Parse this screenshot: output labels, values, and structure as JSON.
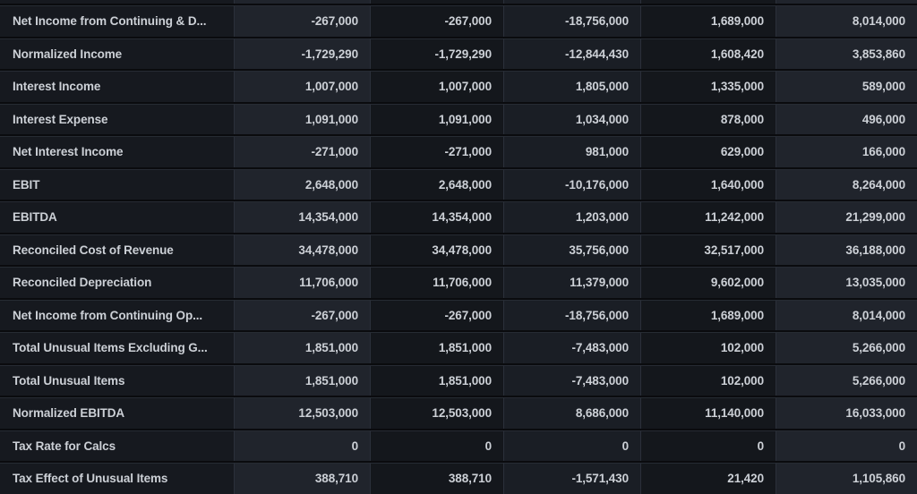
{
  "theme": {
    "page_bg": "#0a0b0e",
    "row_gap_color": "#0a0b0e",
    "top_border_color": "#262b33",
    "column_separator_color": "#2b303a",
    "text_color": "#ccd0d6",
    "column_backgrounds": [
      "#16191f",
      "#20242c",
      "#14171c",
      "#1a1e25",
      "#14171c",
      "#20242c"
    ]
  },
  "table": {
    "rows": [
      {
        "label": "Net Income from Continuing & D...",
        "values": [
          "-267,000",
          "-267,000",
          "-18,756,000",
          "1,689,000",
          "8,014,000"
        ]
      },
      {
        "label": "Normalized Income",
        "values": [
          "-1,729,290",
          "-1,729,290",
          "-12,844,430",
          "1,608,420",
          "3,853,860"
        ]
      },
      {
        "label": "Interest Income",
        "values": [
          "1,007,000",
          "1,007,000",
          "1,805,000",
          "1,335,000",
          "589,000"
        ]
      },
      {
        "label": "Interest Expense",
        "values": [
          "1,091,000",
          "1,091,000",
          "1,034,000",
          "878,000",
          "496,000"
        ]
      },
      {
        "label": "Net Interest Income",
        "values": [
          "-271,000",
          "-271,000",
          "981,000",
          "629,000",
          "166,000"
        ]
      },
      {
        "label": "EBIT",
        "values": [
          "2,648,000",
          "2,648,000",
          "-10,176,000",
          "1,640,000",
          "8,264,000"
        ]
      },
      {
        "label": "EBITDA",
        "values": [
          "14,354,000",
          "14,354,000",
          "1,203,000",
          "11,242,000",
          "21,299,000"
        ]
      },
      {
        "label": "Reconciled Cost of Revenue",
        "values": [
          "34,478,000",
          "34,478,000",
          "35,756,000",
          "32,517,000",
          "36,188,000"
        ]
      },
      {
        "label": "Reconciled Depreciation",
        "values": [
          "11,706,000",
          "11,706,000",
          "11,379,000",
          "9,602,000",
          "13,035,000"
        ]
      },
      {
        "label": "Net Income from Continuing Op...",
        "values": [
          "-267,000",
          "-267,000",
          "-18,756,000",
          "1,689,000",
          "8,014,000"
        ]
      },
      {
        "label": "Total Unusual Items Excluding G...",
        "values": [
          "1,851,000",
          "1,851,000",
          "-7,483,000",
          "102,000",
          "5,266,000"
        ]
      },
      {
        "label": "Total Unusual Items",
        "values": [
          "1,851,000",
          "1,851,000",
          "-7,483,000",
          "102,000",
          "5,266,000"
        ]
      },
      {
        "label": "Normalized EBITDA",
        "values": [
          "12,503,000",
          "12,503,000",
          "8,686,000",
          "11,140,000",
          "16,033,000"
        ]
      },
      {
        "label": "Tax Rate for Calcs",
        "values": [
          "0",
          "0",
          "0",
          "0",
          "0"
        ]
      },
      {
        "label": "Tax Effect of Unusual Items",
        "values": [
          "388,710",
          "388,710",
          "-1,571,430",
          "21,420",
          "1,105,860"
        ]
      }
    ]
  }
}
